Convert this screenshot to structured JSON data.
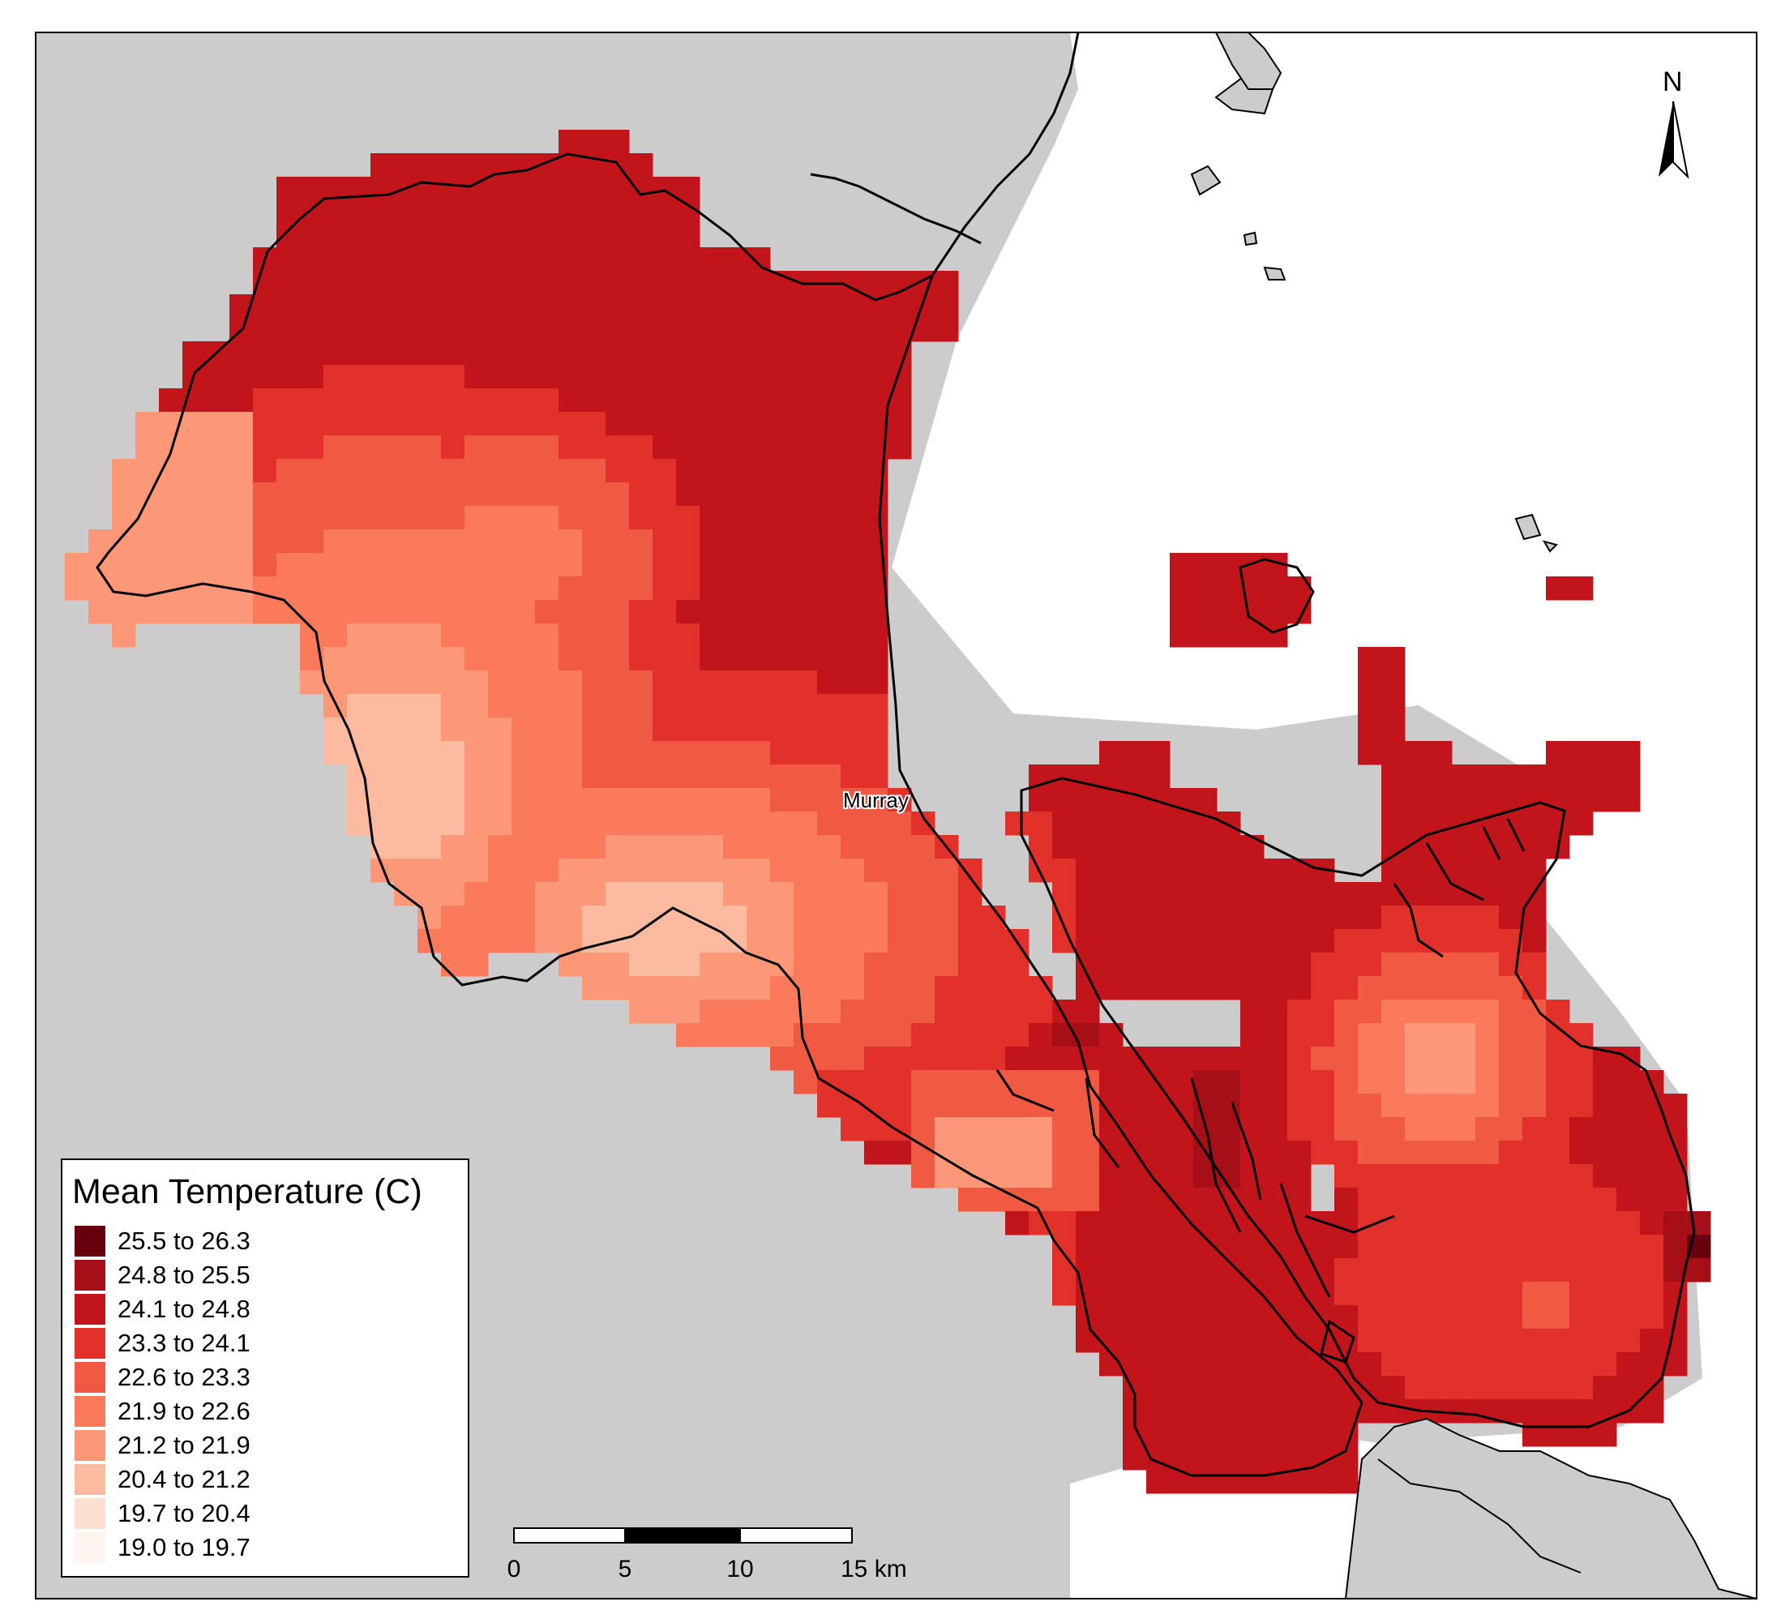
{
  "map": {
    "place_label": "Murray",
    "north_label": "N",
    "colors": {
      "land": "#cccccc",
      "water": "#ffffff",
      "outline": "#000000"
    }
  },
  "legend": {
    "title": "Mean Temperature (C)",
    "classes": [
      {
        "label": "25.5 to 26.3",
        "color": "#67000d"
      },
      {
        "label": "24.8 to 25.5",
        "color": "#a50f15"
      },
      {
        "label": "24.1 to 24.8",
        "color": "#c1151b"
      },
      {
        "label": "23.3 to 24.1",
        "color": "#e2302b"
      },
      {
        "label": "22.6 to 23.3",
        "color": "#f15a42"
      },
      {
        "label": "21.9 to 22.6",
        "color": "#fb7a5c"
      },
      {
        "label": "21.2 to 21.9",
        "color": "#fc9878"
      },
      {
        "label": "20.4 to 21.2",
        "color": "#fcbba1"
      },
      {
        "label": "19.7 to 20.4",
        "color": "#fee0d2"
      },
      {
        "label": "19.0 to 19.7",
        "color": "#fff5f0"
      }
    ]
  },
  "scale_bar": {
    "ticks": [
      "0",
      "5",
      "10",
      "15 km"
    ]
  }
}
